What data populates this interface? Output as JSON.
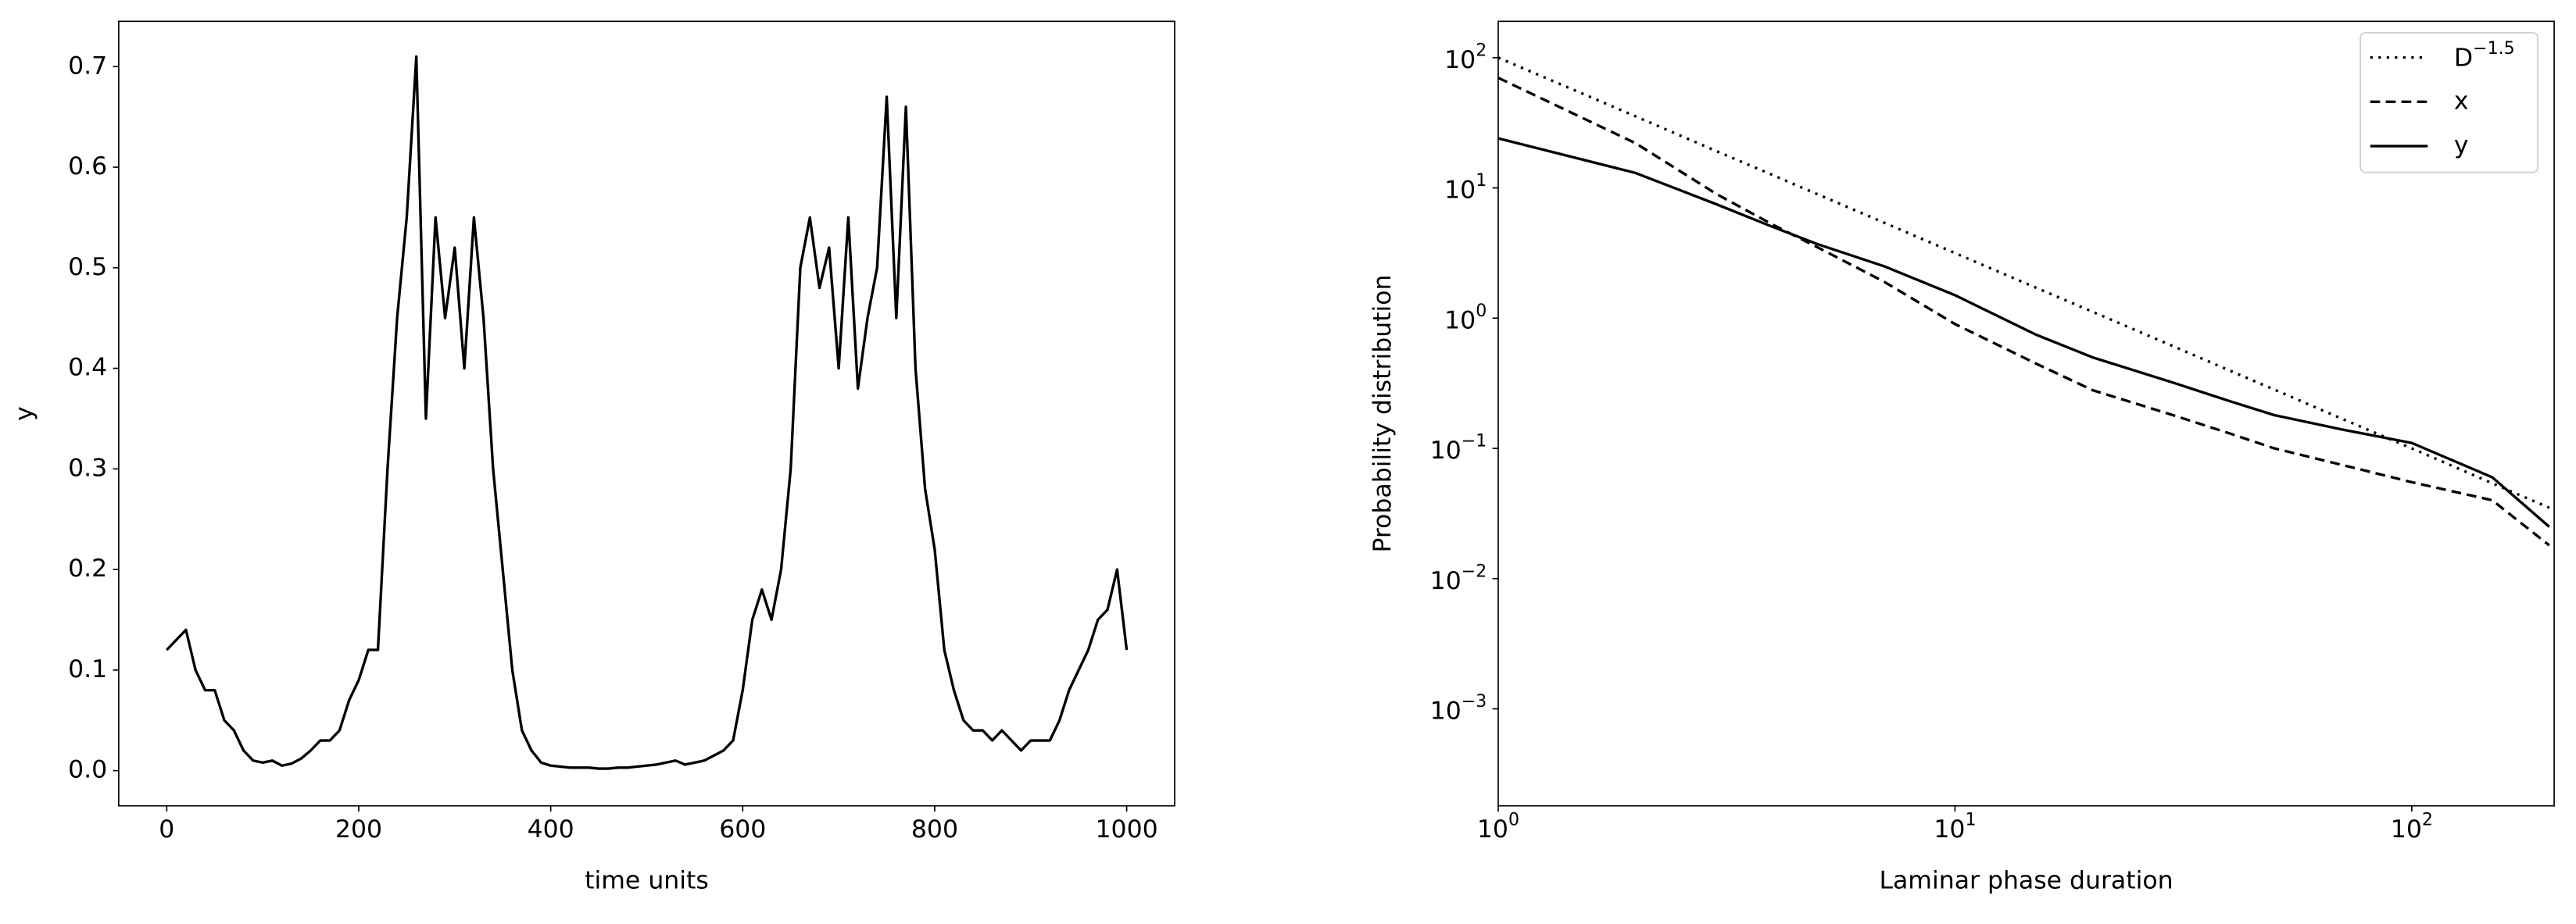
{
  "chart_data": [
    {
      "type": "line",
      "xlabel": "time units",
      "ylabel": "y",
      "x": [
        0,
        10,
        20,
        30,
        40,
        50,
        60,
        70,
        80,
        90,
        100,
        110,
        120,
        130,
        140,
        150,
        160,
        170,
        180,
        190,
        200,
        210,
        220,
        230,
        240,
        250,
        260,
        270,
        280,
        290,
        300,
        310,
        320,
        330,
        340,
        350,
        360,
        370,
        380,
        390,
        400,
        410,
        420,
        430,
        440,
        450,
        460,
        470,
        480,
        490,
        500,
        510,
        520,
        530,
        540,
        550,
        560,
        570,
        580,
        590,
        600,
        610,
        620,
        630,
        640,
        650,
        660,
        670,
        680,
        690,
        700,
        710,
        720,
        730,
        740,
        750,
        760,
        770,
        780,
        790,
        800,
        810,
        820,
        830,
        840,
        850,
        860,
        870,
        880,
        890,
        900,
        910,
        920,
        930,
        940,
        950,
        960,
        970,
        980,
        990,
        1000
      ],
      "series": [
        {
          "name": "y",
          "color": "#000000",
          "values": [
            0.12,
            0.13,
            0.14,
            0.1,
            0.08,
            0.08,
            0.05,
            0.04,
            0.02,
            0.01,
            0.008,
            0.01,
            0.005,
            0.007,
            0.012,
            0.02,
            0.03,
            0.03,
            0.04,
            0.07,
            0.09,
            0.12,
            0.12,
            0.3,
            0.45,
            0.55,
            0.71,
            0.35,
            0.55,
            0.45,
            0.52,
            0.4,
            0.55,
            0.45,
            0.3,
            0.2,
            0.1,
            0.04,
            0.02,
            0.008,
            0.005,
            0.004,
            0.003,
            0.003,
            0.003,
            0.002,
            0.002,
            0.003,
            0.003,
            0.004,
            0.005,
            0.006,
            0.008,
            0.01,
            0.006,
            0.008,
            0.01,
            0.015,
            0.02,
            0.03,
            0.08,
            0.15,
            0.18,
            0.15,
            0.2,
            0.3,
            0.5,
            0.55,
            0.48,
            0.52,
            0.4,
            0.55,
            0.38,
            0.45,
            0.5,
            0.67,
            0.45,
            0.66,
            0.4,
            0.28,
            0.22,
            0.12,
            0.08,
            0.05,
            0.04,
            0.04,
            0.03,
            0.04,
            0.03,
            0.02,
            0.03,
            0.03,
            0.03,
            0.05,
            0.08,
            0.1,
            0.12,
            0.15,
            0.16,
            0.2,
            0.12
          ]
        }
      ],
      "xlim": [
        -50,
        1050
      ],
      "ylim": [
        -0.035,
        0.745
      ],
      "xticks": [
        0,
        200,
        400,
        600,
        800,
        1000
      ],
      "yticks": [
        {
          "value": 0,
          "label": "0.0"
        },
        0.1,
        0.2,
        0.3,
        0.4,
        0.5,
        0.6,
        0.7
      ]
    },
    {
      "type": "line",
      "xlabel": "Laminar phase duration",
      "ylabel": "Probability distribution",
      "xscale": "log",
      "yscale": "log",
      "legend": "upper right",
      "x": [
        1,
        2,
        3,
        4,
        5,
        7,
        10,
        15,
        20,
        30,
        40,
        50,
        70,
        100,
        150,
        200
      ],
      "series": [
        {
          "name": "D^{−1.5}",
          "color": "#000000",
          "linestyle": "dotted",
          "values": [
            100,
            35.4,
            19.2,
            12.5,
            8.94,
            5.4,
            3.16,
            1.72,
            1.12,
            0.61,
            0.395,
            0.283,
            0.17,
            0.1,
            0.054,
            0.035
          ]
        },
        {
          "name": "x",
          "color": "#000000",
          "linestyle": "dashed",
          "values": [
            70,
            22,
            9,
            5.2,
            3.5,
            1.9,
            0.9,
            0.45,
            0.28,
            0.18,
            0.13,
            0.1,
            0.075,
            0.055,
            0.04,
            0.018
          ]
        },
        {
          "name": "y",
          "color": "#000000",
          "linestyle": "solid",
          "values": [
            24,
            13,
            7.5,
            5,
            3.7,
            2.5,
            1.5,
            0.75,
            0.5,
            0.32,
            0.23,
            0.18,
            0.14,
            0.11,
            0.06,
            0.025
          ]
        }
      ],
      "xlim": [
        1,
        205
      ],
      "ylim": [
        0.00018,
        190
      ],
      "xticks": [
        {
          "value": 1,
          "label": "10^{0}"
        },
        {
          "value": 10,
          "label": "10^{1}"
        },
        {
          "value": 100,
          "label": "10^{2}"
        }
      ],
      "yticks": [
        {
          "value": 0.001,
          "label": "10^{−3}"
        },
        {
          "value": 0.01,
          "label": "10^{−2}"
        },
        {
          "value": 0.1,
          "label": "10^{−1}"
        },
        {
          "value": 1,
          "label": "10^{0}"
        },
        {
          "value": 10,
          "label": "10^{1}"
        },
        {
          "value": 100,
          "label": "10^{2}"
        }
      ]
    }
  ]
}
